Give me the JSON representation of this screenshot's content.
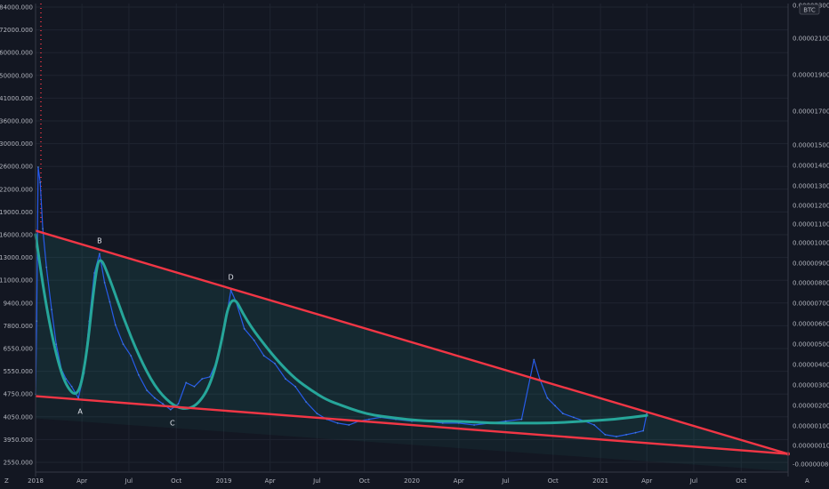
{
  "chart_data": {
    "type": "line",
    "title": "",
    "currency_badge": "BTC",
    "corner_left": "Z",
    "corner_right": "A",
    "grid": true,
    "left_axis_ticks": [
      "84000.000",
      "72000.000",
      "60000.000",
      "50000.000",
      "41000.000",
      "36000.000",
      "30000.000",
      "26000.000",
      "22000.000",
      "19000.000",
      "16000.000",
      "13000.000",
      "11000.000",
      "9400.000",
      "7800.000",
      "6550.000",
      "5550.000",
      "4750.000",
      "4050.000",
      "3950.000",
      "2550.000"
    ],
    "right_axis_ticks": [
      "0.00002300",
      "0.00002100",
      "0.00001900",
      "0.00001700",
      "0.00001500",
      "0.00001400",
      "0.00001300",
      "0.00001200",
      "0.00001100",
      "0.00001000",
      "0.00000900",
      "0.00000800",
      "0.00000700",
      "0.00000600",
      "0.00000500",
      "0.00000400",
      "0.00000300",
      "0.00000200",
      "0.00000100",
      "0.00000010",
      "-0.00000080"
    ],
    "x_ticks": [
      "2018",
      "Apr",
      "Jul",
      "Oct",
      "2019",
      "Apr",
      "Jul",
      "Oct",
      "2020",
      "Apr",
      "Jul",
      "Oct",
      "2021",
      "Apr",
      "Jul",
      "Oct"
    ],
    "x_range": [
      "2018-01-01",
      "2021-12-31"
    ],
    "y_range_right": [
      -8e-07,
      2.35e-05
    ],
    "points": [
      {
        "label": "A",
        "date": "2018-03-25",
        "value": 3e-06
      },
      {
        "label": "B",
        "date": "2018-05-05",
        "value": 1.05e-05
      },
      {
        "label": "C",
        "date": "2018-09-20",
        "value": 2.4e-06
      },
      {
        "label": "D",
        "date": "2019-01-15",
        "value": 8.6e-06
      }
    ],
    "series": [
      {
        "color": "#2962ff",
        "x": [
          "2018-01-01",
          "2018-01-03",
          "2018-01-06",
          "2018-01-10",
          "2018-01-15",
          "2018-01-22",
          "2018-02-01",
          "2018-02-10",
          "2018-02-20",
          "2018-03-01",
          "2018-03-12",
          "2018-03-25",
          "2018-04-05",
          "2018-04-15",
          "2018-04-25",
          "2018-05-05",
          "2018-05-15",
          "2018-05-25",
          "2018-06-05",
          "2018-06-20",
          "2018-07-05",
          "2018-07-20",
          "2018-08-05",
          "2018-08-20",
          "2018-09-05",
          "2018-09-20",
          "2018-10-05",
          "2018-10-20",
          "2018-11-05",
          "2018-11-20",
          "2018-12-05",
          "2018-12-20",
          "2019-01-05",
          "2019-01-15",
          "2019-01-25",
          "2019-02-10",
          "2019-03-01",
          "2019-03-20",
          "2019-04-10",
          "2019-05-01",
          "2019-05-20",
          "2019-06-10",
          "2019-07-01",
          "2019-07-20",
          "2019-08-10",
          "2019-09-01",
          "2019-09-20",
          "2019-10-10",
          "2019-11-01",
          "2019-12-01",
          "2020-01-01",
          "2020-02-01",
          "2020-03-01",
          "2020-04-01",
          "2020-05-01",
          "2020-06-01",
          "2020-07-01",
          "2020-08-01",
          "2020-08-25",
          "2020-09-05",
          "2020-09-20",
          "2020-10-05",
          "2020-10-20",
          "2020-11-10",
          "2020-12-01",
          "2020-12-20",
          "2021-01-10",
          "2021-02-01",
          "2021-02-20",
          "2021-03-10",
          "2021-03-25",
          "2021-04-01"
        ],
        "values": [
          3.2e-06,
          7e-06,
          1.5e-05,
          1.42e-05,
          1.18e-05,
          9.8e-06,
          7.6e-06,
          5.8e-06,
          4.5e-06,
          4e-06,
          3.6e-06,
          3e-06,
          4.3e-06,
          7e-06,
          9.5e-06,
          1.05e-05,
          9e-06,
          8e-06,
          6.8e-06,
          5.8e-06,
          5.2e-06,
          4.2e-06,
          3.4e-06,
          3e-06,
          2.7e-06,
          2.4e-06,
          2.7e-06,
          3.8e-06,
          3.6e-06,
          4e-06,
          4.1e-06,
          5e-06,
          7e-06,
          8.6e-06,
          8e-06,
          6.6e-06,
          6e-06,
          5.2e-06,
          4.8e-06,
          4e-06,
          3.6e-06,
          2.8e-06,
          2.2e-06,
          1.9e-06,
          1.7e-06,
          1.6e-06,
          1.8e-06,
          1.9e-06,
          2e-06,
          1.9e-06,
          1.8e-06,
          1.8e-06,
          1.7e-06,
          1.7e-06,
          1.6e-06,
          1.7e-06,
          1.8e-06,
          1.9e-06,
          5e-06,
          4e-06,
          3e-06,
          2.6e-06,
          2.2e-06,
          2e-06,
          1.8e-06,
          1.6e-06,
          1.1e-06,
          1e-06,
          1.1e-06,
          1.2e-06,
          1.3e-06,
          2.2e-06
        ]
      }
    ],
    "fit_curve": {
      "color": "#26a69a",
      "x": [
        "2018-01-01",
        "2018-01-20",
        "2018-02-10",
        "2018-03-01",
        "2018-03-25",
        "2018-04-10",
        "2018-04-25",
        "2018-05-05",
        "2018-05-25",
        "2018-06-20",
        "2018-07-20",
        "2018-08-20",
        "2018-09-20",
        "2018-10-15",
        "2018-11-10",
        "2018-12-05",
        "2018-12-25",
        "2019-01-15",
        "2019-02-15",
        "2019-03-20",
        "2019-04-20",
        "2019-05-20",
        "2019-06-20",
        "2019-07-20",
        "2019-08-20",
        "2019-09-20",
        "2019-10-20",
        "2019-11-20",
        "2019-12-20",
        "2020-02-01",
        "2020-04-01",
        "2020-06-01",
        "2020-08-01",
        "2020-10-01",
        "2020-12-01",
        "2021-02-01",
        "2021-04-01"
      ],
      "values": [
        1.15e-05,
        8e-06,
        5.2e-06,
        3.6e-06,
        3e-06,
        5.2e-06,
        9e-06,
        1.05e-05,
        9.2e-06,
        7.2e-06,
        5.2e-06,
        3.6e-06,
        2.7e-06,
        2.4e-06,
        2.6e-06,
        3.6e-06,
        5.5e-06,
        8.6e-06,
        7e-06,
        5.8e-06,
        4.8e-06,
        4e-06,
        3.4e-06,
        2.9e-06,
        2.6e-06,
        2.3e-06,
        2.1e-06,
        2e-06,
        1.9e-06,
        1.8e-06,
        1.8e-06,
        1.7e-06,
        1.7e-06,
        1.7e-06,
        1.8e-06,
        1.9e-06,
        2.1e-06
      ]
    },
    "trend_lines": [
      {
        "name_hidden": "upper",
        "color": "#f23645",
        "from": {
          "date": "2018-01-01",
          "value": 1.17e-05
        },
        "to": {
          "date": "2021-12-31",
          "value": 1e-07
        }
      },
      {
        "name_hidden": "lower",
        "color": "#f23645",
        "from": {
          "date": "2018-01-01",
          "value": 3.1e-06
        },
        "to": {
          "date": "2021-12-31",
          "value": 1e-07
        }
      }
    ]
  }
}
